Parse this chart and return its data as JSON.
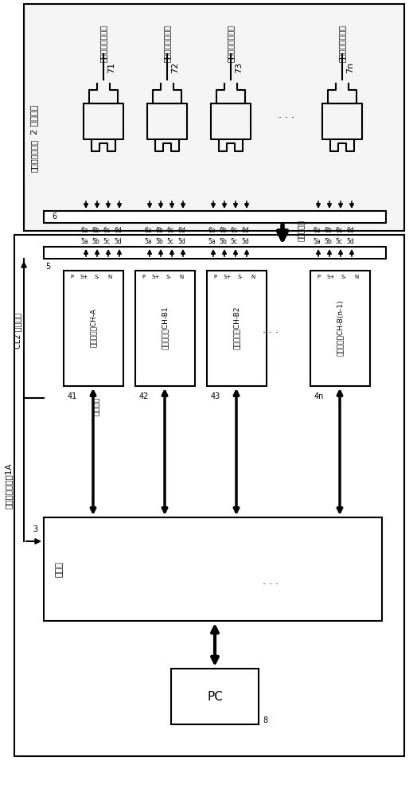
{
  "bg_color": "#f0f0f0",
  "line_color": "#000000",
  "title": "",
  "battery_labels": [
    "71",
    "72",
    "73",
    "7n"
  ],
  "battery_text": [
    "电池（试验对象）",
    "电池（试验对象）",
    "电池（试验对象）",
    "电池（试验对象）"
  ],
  "tray_label": "2 电池托盘",
  "tray_sublabel": "（无通信线路）",
  "connector_label": "6",
  "connector_sub_labels": [
    "6a",
    "6b",
    "6c",
    "6d"
  ],
  "bus_label": "5",
  "bus_sub_labels": [
    "5a",
    "5b",
    "5c",
    "5d"
  ],
  "switcher_labels": [
    "连接器连接"
  ],
  "power_units": [
    {
      "id": "41",
      "name": "充放电电源CH-A"
    },
    {
      "id": "42",
      "name": "充放电电源CH-B1"
    },
    {
      "id": "43",
      "name": "充放电电源CH-B2"
    },
    {
      "id": "4n",
      "name": "充放电电源CH-B(n-1)"
    }
  ],
  "comm_bus_label": "CL2 通信线路",
  "comm_line_label": "通信线路",
  "controller_label": "控制器",
  "controller_id": "3",
  "device_label": "充放电试验装置1A",
  "pc_label": "PC",
  "pc_id": "8"
}
